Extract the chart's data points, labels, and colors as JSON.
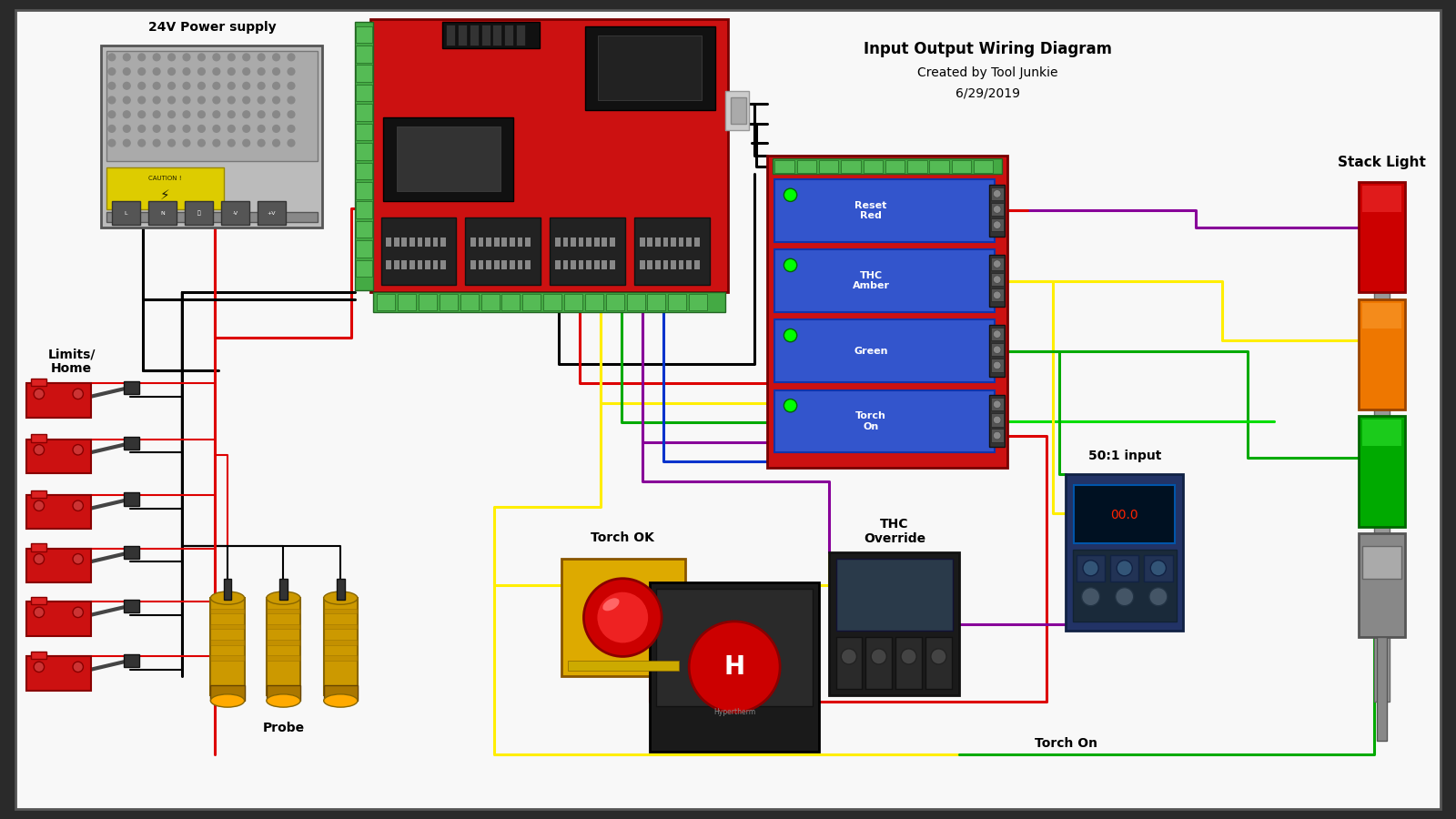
{
  "title": "Input Output Wiring Diagram",
  "subtitle1": "Created by Tool Junkie",
  "subtitle2": "6/29/2019",
  "bg_outer": "#2a2a2a",
  "bg_inner": "#f0f0f0",
  "labels": {
    "power_supply": "24V Power supply",
    "limits_home": "Limits/\nHome",
    "probe": "Probe",
    "torch_ok": "Torch OK",
    "thc_override": "THC\nOverride",
    "stack_light": "Stack Light",
    "relay_labels": [
      "Reset\nRed",
      "THC\nAmber",
      "Green",
      "Torch\nOn"
    ],
    "torch_on": "Torch On",
    "ratio_input": "50:1 input"
  },
  "wires": {
    "black": "#000000",
    "red": "#dd0000",
    "yellow": "#ffee00",
    "green": "#00aa00",
    "purple": "#880099",
    "blue": "#0033cc",
    "lime": "#00dd00",
    "orange": "#ff8800",
    "white": "#ffffff",
    "gray": "#888888"
  },
  "comp": {
    "ps_body": "#aaaaaa",
    "cnc_red": "#cc1111",
    "relay_red": "#cc1111",
    "relay_blue": "#3355cc",
    "switch_red": "#cc1111",
    "probe_gold": "#cc9900",
    "stack_red": "#dd0000",
    "stack_amber": "#ff7700",
    "stack_green": "#00bb00",
    "stack_pole": "#888888",
    "torch_yellow": "#ddaa00",
    "plasma_dark": "#1a1a1a",
    "thc_dark": "#222222",
    "ratio_blue": "#223366",
    "term_green": "#44aa44"
  }
}
